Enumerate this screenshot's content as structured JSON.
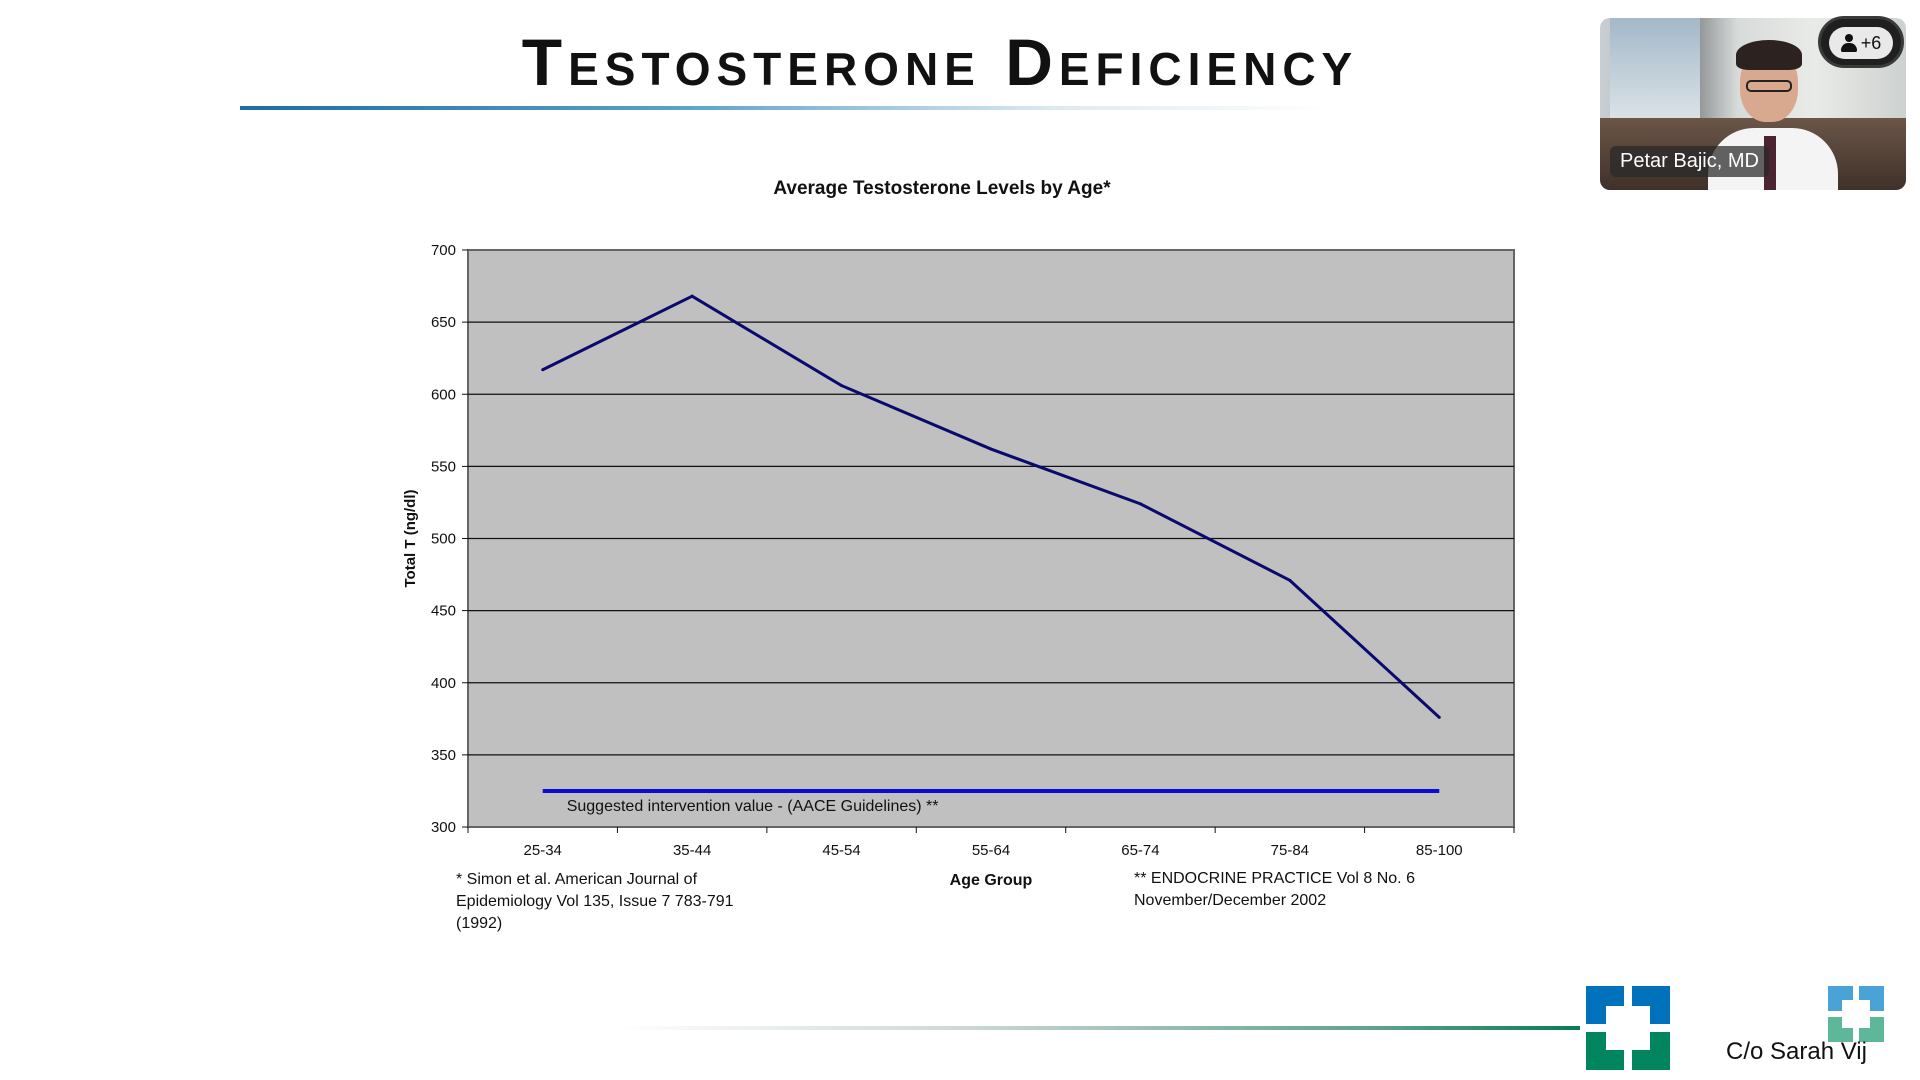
{
  "slide": {
    "title": "Testosterone Deficiency",
    "credit": "C/o Sarah Vij"
  },
  "video_call": {
    "presenter_name": "Petar Bajic, MD",
    "participants_extra": "+6"
  },
  "colors": {
    "plot_background": "#c0c0c0",
    "series_line": "#0a0a6e",
    "intervention_line": "#0b0bd6",
    "title_rule": "#1c6ea4",
    "logo_blue": "#0072bc",
    "logo_green": "#00855f"
  },
  "chart_data": {
    "type": "line",
    "title": "Average Testosterone Levels by Age*",
    "xlabel": "Age Group",
    "ylabel": "Total T (ng/dl)",
    "categories": [
      "25-34",
      "35-44",
      "45-54",
      "55-64",
      "65-74",
      "75-84",
      "85-100"
    ],
    "ylim": [
      300,
      700
    ],
    "yticks": [
      700,
      650,
      600,
      550,
      500,
      450,
      400,
      350,
      300
    ],
    "grid": true,
    "series": [
      {
        "values": [
          617,
          668,
          606,
          562,
          524,
          471,
          376
        ]
      }
    ],
    "reference_line": {
      "value": 325,
      "label": "Suggested intervention value -  (AACE Guidelines) **"
    },
    "footnotes": {
      "left": [
        "* Simon et al.  American Journal of",
        "Epidemiology  Vol 135, Issue 7 783-791",
        "(1992)"
      ],
      "right": [
        "** ENDOCRINE PRACTICE Vol 8 No. 6",
        "November/December 2002"
      ]
    }
  }
}
